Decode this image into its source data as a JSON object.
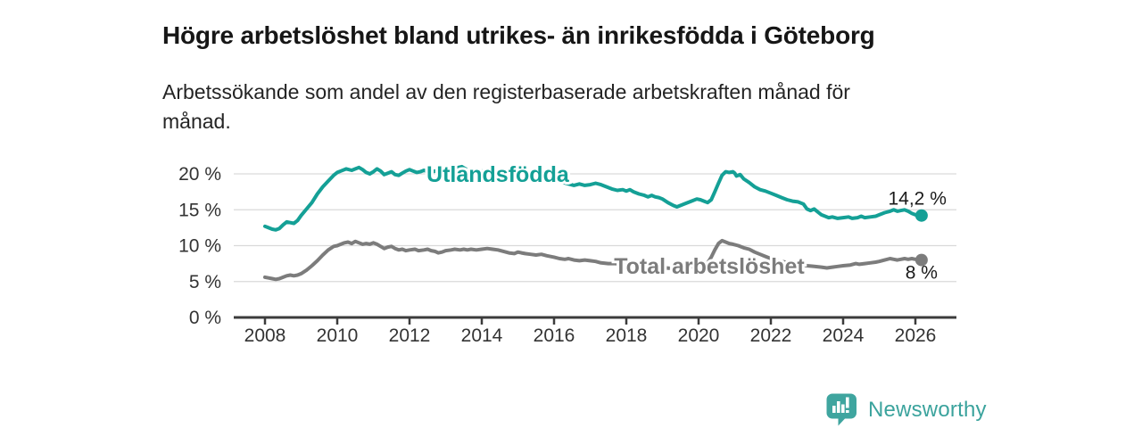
{
  "header": {
    "title": "Högre arbetslöshet bland utrikes- än inrikesfödda i Göteborg",
    "subtitle": "Arbetssökande som andel av den registerbaserade arbetskraften månad för månad."
  },
  "footer": {
    "brand": "Newsworthy"
  },
  "colors": {
    "teal": "#14a096",
    "gray": "#7c7c7c",
    "axis": "#3c3c3c",
    "grid": "#d9d9d9",
    "label_text": "#1a1a1a",
    "logo": "#3fa59f"
  },
  "chart_data": {
    "type": "line",
    "title": "Högre arbetslöshet bland utrikes- än inrikesfödda i Göteborg",
    "subtitle": "Arbetssökande som andel av den registerbaserade arbetskraften månad för månad.",
    "grid": "horizontal",
    "x_axis": {
      "ticks": [
        2008,
        2010,
        2012,
        2014,
        2016,
        2018,
        2020,
        2022,
        2024,
        2026
      ]
    },
    "y_axis": {
      "ticks": [
        {
          "value": 0,
          "label": "0 %"
        },
        {
          "value": 5,
          "label": "5 %"
        },
        {
          "value": 10,
          "label": "10 %"
        },
        {
          "value": 15,
          "label": "15 %"
        },
        {
          "value": 20,
          "label": "20 %"
        }
      ],
      "min": 0,
      "max": 22
    },
    "series": [
      {
        "name": "Total arbetslöshet",
        "color": "#7c7c7c",
        "inline_label": {
          "text": "Total arbetslöshet",
          "x": 2017.66,
          "v": 6.1
        },
        "end_label": {
          "text": "8 %",
          "position": "below"
        },
        "end_value": 8.0,
        "points": [
          [
            2008.0,
            5.6
          ],
          [
            2008.1,
            5.5
          ],
          [
            2008.2,
            5.4
          ],
          [
            2008.3,
            5.3
          ],
          [
            2008.4,
            5.4
          ],
          [
            2008.5,
            5.6
          ],
          [
            2008.6,
            5.8
          ],
          [
            2008.7,
            5.9
          ],
          [
            2008.8,
            5.8
          ],
          [
            2008.9,
            5.9
          ],
          [
            2009.0,
            6.1
          ],
          [
            2009.15,
            6.6
          ],
          [
            2009.3,
            7.2
          ],
          [
            2009.45,
            7.9
          ],
          [
            2009.6,
            8.7
          ],
          [
            2009.75,
            9.4
          ],
          [
            2009.9,
            9.9
          ],
          [
            2010.0,
            10.0
          ],
          [
            2010.1,
            10.2
          ],
          [
            2010.2,
            10.4
          ],
          [
            2010.3,
            10.5
          ],
          [
            2010.4,
            10.3
          ],
          [
            2010.5,
            10.6
          ],
          [
            2010.6,
            10.4
          ],
          [
            2010.7,
            10.2
          ],
          [
            2010.8,
            10.3
          ],
          [
            2010.9,
            10.2
          ],
          [
            2011.0,
            10.4
          ],
          [
            2011.1,
            10.2
          ],
          [
            2011.2,
            9.9
          ],
          [
            2011.3,
            9.6
          ],
          [
            2011.4,
            9.8
          ],
          [
            2011.5,
            9.9
          ],
          [
            2011.6,
            9.6
          ],
          [
            2011.7,
            9.4
          ],
          [
            2011.8,
            9.5
          ],
          [
            2011.9,
            9.3
          ],
          [
            2012.0,
            9.4
          ],
          [
            2012.15,
            9.5
          ],
          [
            2012.25,
            9.3
          ],
          [
            2012.4,
            9.4
          ],
          [
            2012.5,
            9.5
          ],
          [
            2012.6,
            9.3
          ],
          [
            2012.7,
            9.2
          ],
          [
            2012.8,
            9.0
          ],
          [
            2012.9,
            9.1
          ],
          [
            2013.0,
            9.3
          ],
          [
            2013.15,
            9.4
          ],
          [
            2013.25,
            9.5
          ],
          [
            2013.4,
            9.4
          ],
          [
            2013.5,
            9.5
          ],
          [
            2013.6,
            9.4
          ],
          [
            2013.7,
            9.5
          ],
          [
            2013.85,
            9.4
          ],
          [
            2014.0,
            9.5
          ],
          [
            2014.15,
            9.6
          ],
          [
            2014.3,
            9.5
          ],
          [
            2014.45,
            9.4
          ],
          [
            2014.6,
            9.2
          ],
          [
            2014.75,
            9.0
          ],
          [
            2014.9,
            8.9
          ],
          [
            2015.0,
            9.1
          ],
          [
            2015.1,
            9.0
          ],
          [
            2015.2,
            8.9
          ],
          [
            2015.35,
            8.8
          ],
          [
            2015.5,
            8.7
          ],
          [
            2015.65,
            8.8
          ],
          [
            2015.8,
            8.6
          ],
          [
            2016.0,
            8.4
          ],
          [
            2016.15,
            8.2
          ],
          [
            2016.3,
            8.1
          ],
          [
            2016.4,
            8.2
          ],
          [
            2016.55,
            8.0
          ],
          [
            2016.7,
            7.9
          ],
          [
            2016.85,
            8.0
          ],
          [
            2017.0,
            7.9
          ],
          [
            2017.15,
            7.8
          ],
          [
            2017.3,
            7.6
          ],
          [
            2017.5,
            7.5
          ],
          [
            2017.7,
            7.5
          ],
          [
            2017.9,
            7.4
          ],
          [
            2018.1,
            7.3
          ],
          [
            2018.3,
            7.2
          ],
          [
            2018.5,
            7.1
          ],
          [
            2018.7,
            7.0
          ],
          [
            2018.9,
            7.0
          ],
          [
            2019.1,
            6.9
          ],
          [
            2019.3,
            6.8
          ],
          [
            2019.5,
            6.9
          ],
          [
            2019.7,
            7.0
          ],
          [
            2019.9,
            7.1
          ],
          [
            2020.1,
            7.3
          ],
          [
            2020.25,
            7.6
          ],
          [
            2020.35,
            8.4
          ],
          [
            2020.45,
            9.4
          ],
          [
            2020.55,
            10.3
          ],
          [
            2020.65,
            10.7
          ],
          [
            2020.75,
            10.5
          ],
          [
            2020.85,
            10.3
          ],
          [
            2020.95,
            10.2
          ],
          [
            2021.1,
            10.0
          ],
          [
            2021.25,
            9.7
          ],
          [
            2021.4,
            9.5
          ],
          [
            2021.55,
            9.1
          ],
          [
            2021.7,
            8.8
          ],
          [
            2021.85,
            8.5
          ],
          [
            2022.0,
            8.2
          ],
          [
            2022.2,
            7.9
          ],
          [
            2022.4,
            7.7
          ],
          [
            2022.6,
            7.5
          ],
          [
            2022.8,
            7.4
          ],
          [
            2023.0,
            7.2
          ],
          [
            2023.2,
            7.1
          ],
          [
            2023.4,
            7.0
          ],
          [
            2023.55,
            6.9
          ],
          [
            2023.7,
            7.0
          ],
          [
            2023.85,
            7.1
          ],
          [
            2024.0,
            7.2
          ],
          [
            2024.2,
            7.3
          ],
          [
            2024.35,
            7.5
          ],
          [
            2024.45,
            7.4
          ],
          [
            2024.6,
            7.5
          ],
          [
            2024.75,
            7.6
          ],
          [
            2024.9,
            7.7
          ],
          [
            2025.0,
            7.8
          ],
          [
            2025.15,
            8.0
          ],
          [
            2025.3,
            8.2
          ],
          [
            2025.4,
            8.1
          ],
          [
            2025.5,
            8.0
          ],
          [
            2025.6,
            8.1
          ],
          [
            2025.7,
            8.2
          ],
          [
            2025.8,
            8.1
          ],
          [
            2025.9,
            8.2
          ],
          [
            2026.0,
            8.1
          ],
          [
            2026.17,
            8.0
          ]
        ]
      },
      {
        "name": "Utlandsfödda",
        "color": "#14a096",
        "inline_label": {
          "text": "Utlandsfödda",
          "x": 2012.47,
          "v": 18.9
        },
        "end_label": {
          "text": "14,2 %",
          "position": "above"
        },
        "end_value": 14.2,
        "points": [
          [
            2008.0,
            12.7
          ],
          [
            2008.1,
            12.5
          ],
          [
            2008.2,
            12.3
          ],
          [
            2008.3,
            12.2
          ],
          [
            2008.4,
            12.4
          ],
          [
            2008.5,
            12.9
          ],
          [
            2008.6,
            13.3
          ],
          [
            2008.7,
            13.2
          ],
          [
            2008.8,
            13.1
          ],
          [
            2008.9,
            13.5
          ],
          [
            2009.0,
            14.2
          ],
          [
            2009.15,
            15.1
          ],
          [
            2009.3,
            16.0
          ],
          [
            2009.45,
            17.2
          ],
          [
            2009.6,
            18.2
          ],
          [
            2009.75,
            19.0
          ],
          [
            2009.9,
            19.8
          ],
          [
            2010.0,
            20.2
          ],
          [
            2010.1,
            20.4
          ],
          [
            2010.25,
            20.7
          ],
          [
            2010.4,
            20.5
          ],
          [
            2010.5,
            20.7
          ],
          [
            2010.6,
            20.9
          ],
          [
            2010.7,
            20.6
          ],
          [
            2010.8,
            20.2
          ],
          [
            2010.9,
            20.0
          ],
          [
            2011.0,
            20.3
          ],
          [
            2011.1,
            20.7
          ],
          [
            2011.2,
            20.4
          ],
          [
            2011.3,
            19.9
          ],
          [
            2011.4,
            20.1
          ],
          [
            2011.5,
            20.3
          ],
          [
            2011.6,
            19.9
          ],
          [
            2011.7,
            19.8
          ],
          [
            2011.8,
            20.1
          ],
          [
            2011.9,
            20.4
          ],
          [
            2012.0,
            20.6
          ],
          [
            2012.1,
            20.4
          ],
          [
            2012.2,
            20.2
          ],
          [
            2012.3,
            20.3
          ],
          [
            2012.4,
            20.5
          ],
          [
            2012.5,
            20.3
          ],
          [
            2012.6,
            20.2
          ],
          [
            2012.7,
            20.4
          ],
          [
            2012.8,
            20.2
          ],
          [
            2012.9,
            20.3
          ],
          [
            2013.0,
            20.2
          ],
          [
            2013.1,
            20.3
          ],
          [
            2013.2,
            20.5
          ],
          [
            2013.35,
            20.9
          ],
          [
            2013.45,
            21.0
          ],
          [
            2013.55,
            20.7
          ],
          [
            2013.7,
            20.4
          ],
          [
            2013.85,
            20.3
          ],
          [
            2014.0,
            20.4
          ],
          [
            2014.15,
            20.3
          ],
          [
            2014.3,
            20.5
          ],
          [
            2014.45,
            20.3
          ],
          [
            2014.6,
            20.2
          ],
          [
            2014.75,
            20.1
          ],
          [
            2014.9,
            20.2
          ],
          [
            2015.05,
            20.1
          ],
          [
            2015.2,
            20.0
          ],
          [
            2015.35,
            20.1
          ],
          [
            2015.5,
            19.9
          ],
          [
            2015.65,
            19.8
          ],
          [
            2015.8,
            19.7
          ],
          [
            2015.95,
            19.4
          ],
          [
            2016.1,
            19.1
          ],
          [
            2016.25,
            18.8
          ],
          [
            2016.4,
            18.6
          ],
          [
            2016.55,
            18.4
          ],
          [
            2016.7,
            18.6
          ],
          [
            2016.85,
            18.4
          ],
          [
            2017.0,
            18.5
          ],
          [
            2017.15,
            18.7
          ],
          [
            2017.3,
            18.5
          ],
          [
            2017.45,
            18.2
          ],
          [
            2017.6,
            17.9
          ],
          [
            2017.75,
            17.7
          ],
          [
            2017.9,
            17.8
          ],
          [
            2018.0,
            17.6
          ],
          [
            2018.1,
            17.8
          ],
          [
            2018.2,
            17.5
          ],
          [
            2018.35,
            17.2
          ],
          [
            2018.5,
            17.0
          ],
          [
            2018.6,
            16.8
          ],
          [
            2018.7,
            17.0
          ],
          [
            2018.8,
            16.8
          ],
          [
            2018.9,
            16.7
          ],
          [
            2019.0,
            16.5
          ],
          [
            2019.15,
            16.0
          ],
          [
            2019.3,
            15.6
          ],
          [
            2019.4,
            15.4
          ],
          [
            2019.5,
            15.6
          ],
          [
            2019.65,
            15.9
          ],
          [
            2019.8,
            16.2
          ],
          [
            2019.95,
            16.5
          ],
          [
            2020.05,
            16.4
          ],
          [
            2020.15,
            16.2
          ],
          [
            2020.25,
            16.0
          ],
          [
            2020.35,
            16.4
          ],
          [
            2020.45,
            17.5
          ],
          [
            2020.55,
            18.7
          ],
          [
            2020.65,
            19.8
          ],
          [
            2020.75,
            20.3
          ],
          [
            2020.85,
            20.2
          ],
          [
            2020.95,
            20.3
          ],
          [
            2021.0,
            20.1
          ],
          [
            2021.05,
            19.7
          ],
          [
            2021.15,
            19.9
          ],
          [
            2021.25,
            19.3
          ],
          [
            2021.4,
            18.8
          ],
          [
            2021.55,
            18.2
          ],
          [
            2021.7,
            17.8
          ],
          [
            2021.85,
            17.6
          ],
          [
            2022.0,
            17.3
          ],
          [
            2022.15,
            17.0
          ],
          [
            2022.3,
            16.7
          ],
          [
            2022.45,
            16.4
          ],
          [
            2022.6,
            16.2
          ],
          [
            2022.75,
            16.1
          ],
          [
            2022.9,
            15.8
          ],
          [
            2023.0,
            15.1
          ],
          [
            2023.1,
            14.9
          ],
          [
            2023.2,
            15.1
          ],
          [
            2023.3,
            14.7
          ],
          [
            2023.4,
            14.3
          ],
          [
            2023.5,
            14.1
          ],
          [
            2023.6,
            13.9
          ],
          [
            2023.7,
            14.0
          ],
          [
            2023.85,
            13.8
          ],
          [
            2024.0,
            13.9
          ],
          [
            2024.15,
            14.0
          ],
          [
            2024.25,
            13.8
          ],
          [
            2024.4,
            13.9
          ],
          [
            2024.5,
            14.1
          ],
          [
            2024.6,
            13.9
          ],
          [
            2024.75,
            14.0
          ],
          [
            2024.9,
            14.1
          ],
          [
            2025.0,
            14.3
          ],
          [
            2025.15,
            14.6
          ],
          [
            2025.3,
            14.8
          ],
          [
            2025.4,
            15.0
          ],
          [
            2025.5,
            14.8
          ],
          [
            2025.6,
            14.9
          ],
          [
            2025.7,
            15.0
          ],
          [
            2025.8,
            14.8
          ],
          [
            2025.9,
            14.5
          ],
          [
            2026.0,
            14.3
          ],
          [
            2026.17,
            14.2
          ]
        ]
      }
    ]
  }
}
